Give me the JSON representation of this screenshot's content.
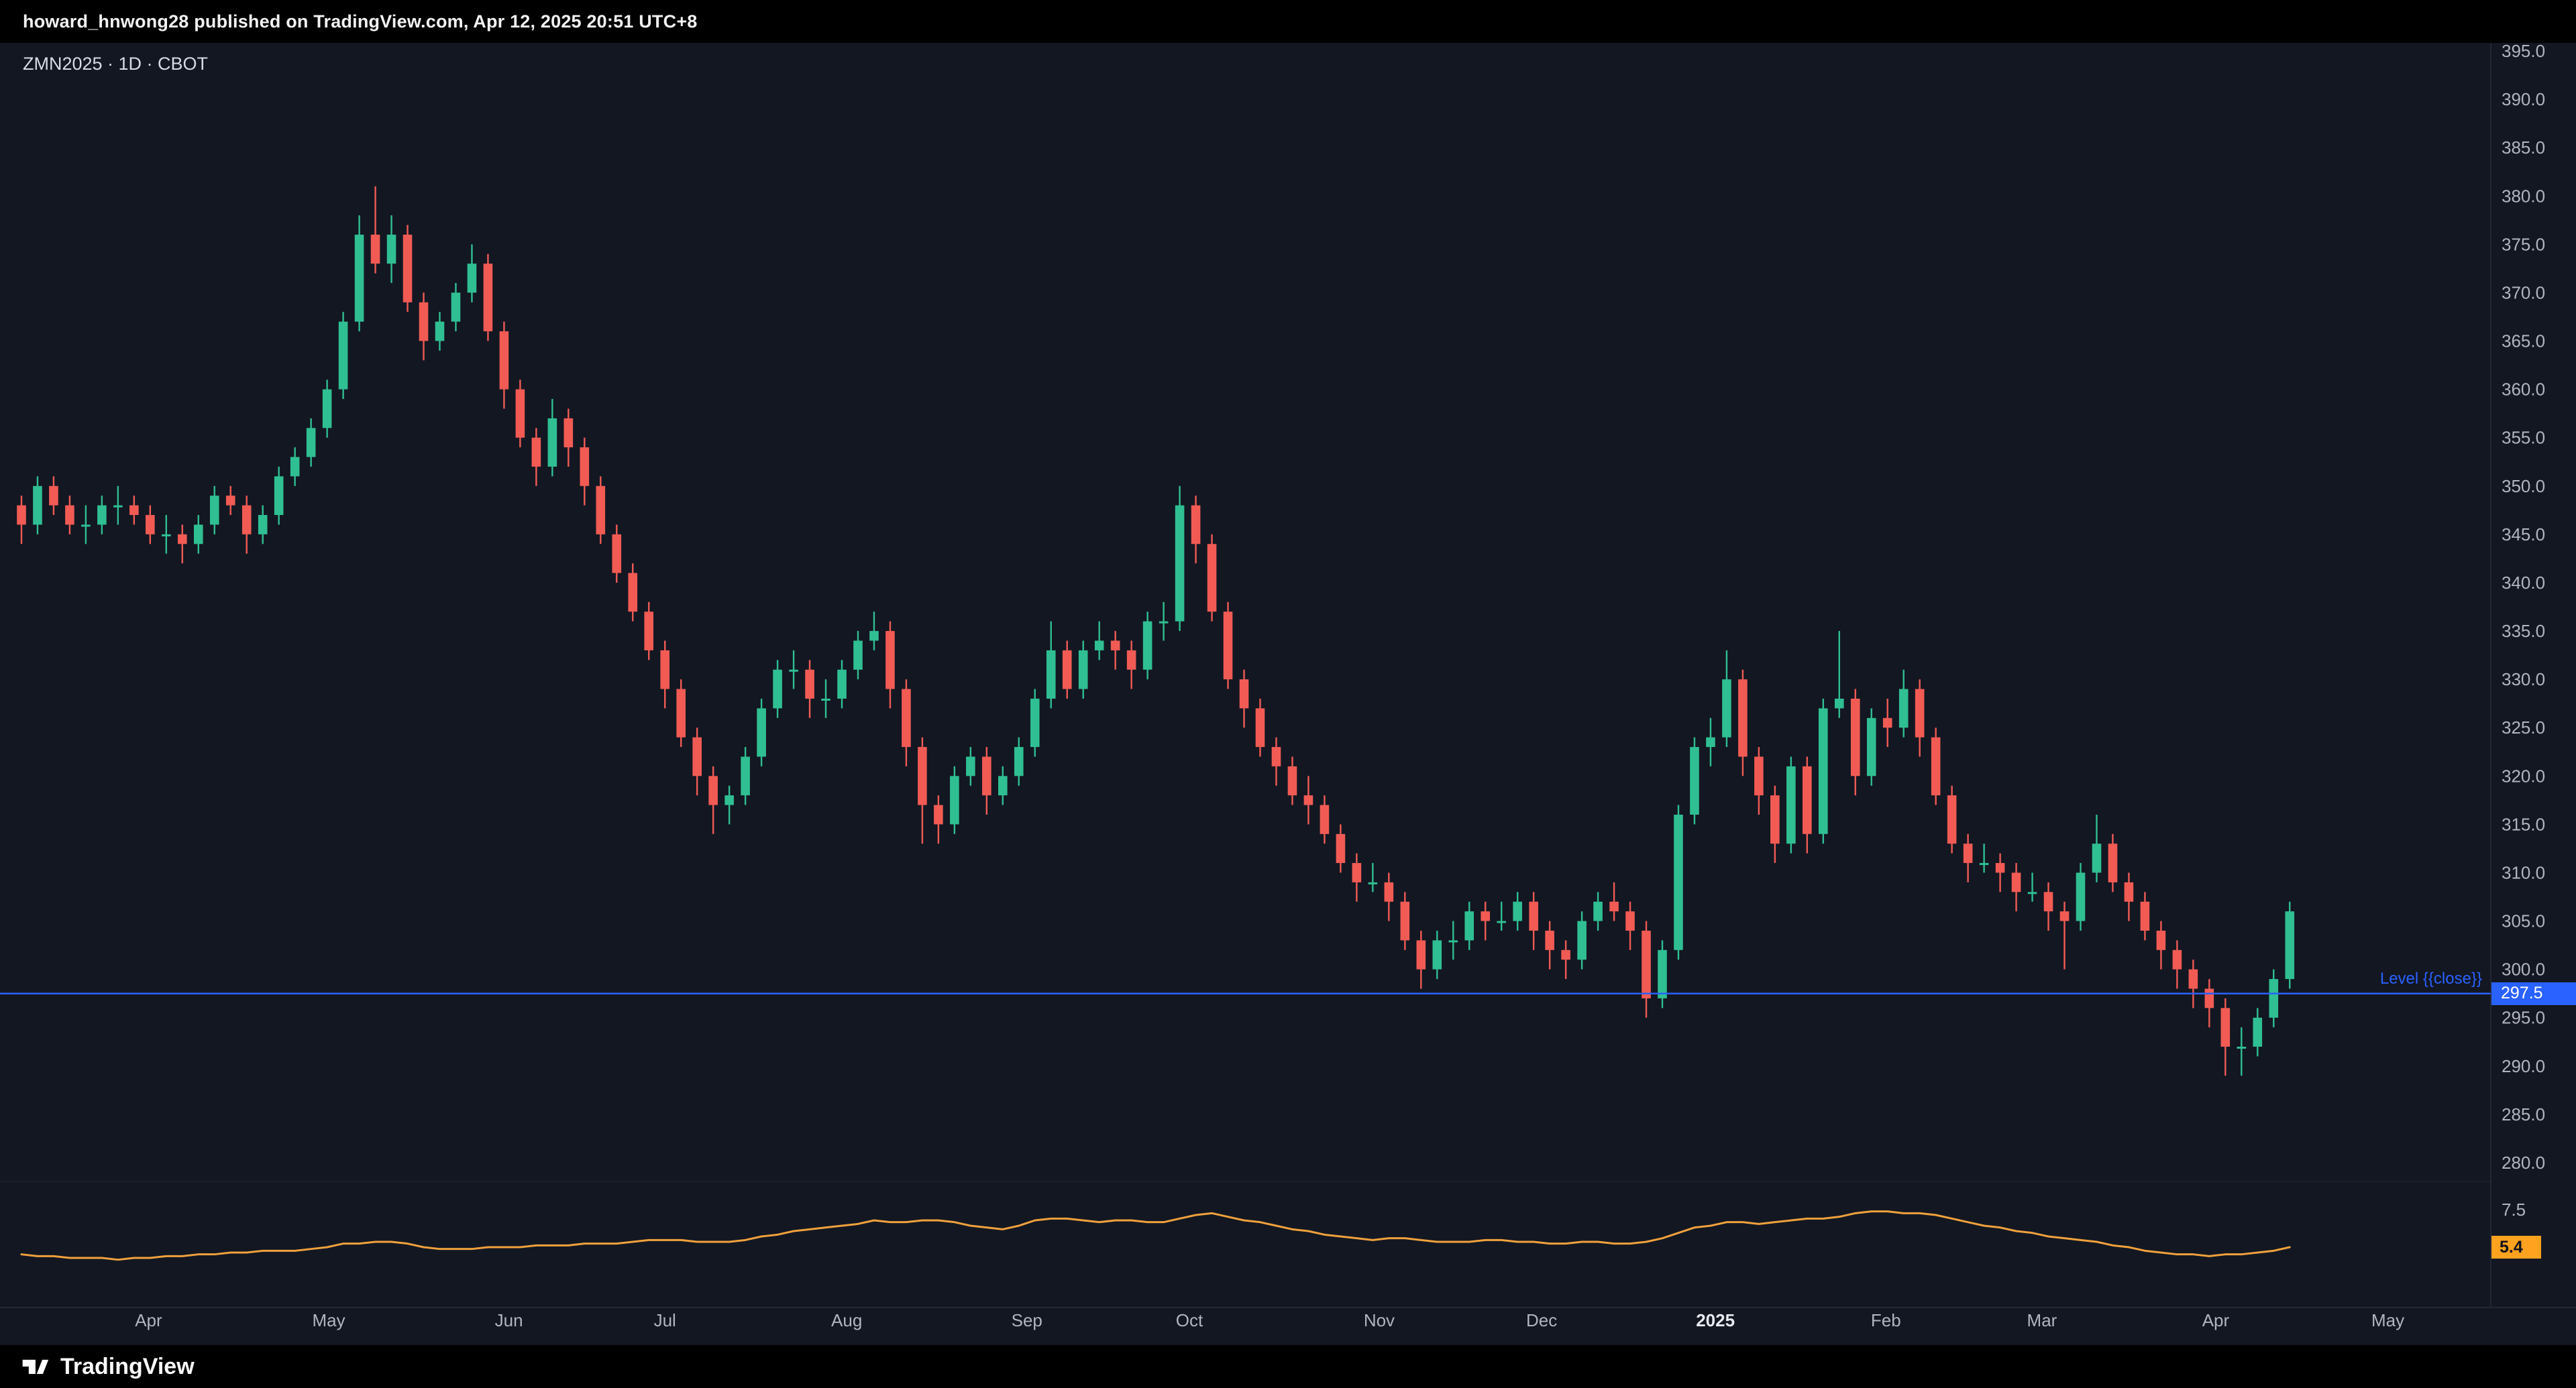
{
  "header": {
    "published_line": "howard_hnwong28 published on TradingView.com, Apr 12, 2025 20:51 UTC+8"
  },
  "symbol_bar": {
    "title": "ZMN2025 · 1D · CBOT"
  },
  "footer": {
    "brand_name": "TradingView"
  },
  "colors": {
    "chart_bg": "#131722",
    "accent_blue": "#2962ff",
    "up_green": "#2fbf92",
    "down_red": "#f15b54",
    "indicator_orange": "#f0a13c",
    "axis_text": "#b2b5be"
  },
  "chart_data": {
    "type": "candlestick",
    "title": "ZMN2025 · 1D · CBOT",
    "symbol": "ZMN2025",
    "interval": "1D",
    "exchange": "CBOT",
    "num_slots": 154,
    "up_color": "#2fbf92",
    "down_color": "#f15b54",
    "price_axis": {
      "max": 395.0,
      "min": 280.0,
      "step": 5.0,
      "tick_labels": [
        "395.0",
        "390.0",
        "385.0",
        "380.0",
        "375.0",
        "370.0",
        "365.0",
        "360.0",
        "355.0",
        "350.0",
        "345.0",
        "340.0",
        "335.0",
        "330.0",
        "325.0",
        "320.0",
        "315.0",
        "310.0",
        "305.0",
        "300.0",
        "295.0",
        "290.0",
        "285.0",
        "280.0"
      ]
    },
    "x_ticks": [
      {
        "label": "Apr",
        "slot": 8.4
      },
      {
        "label": "May",
        "slot": 19.6
      },
      {
        "label": "Jun",
        "slot": 30.8
      },
      {
        "label": "Jul",
        "slot": 40.5
      },
      {
        "label": "Aug",
        "slot": 51.8
      },
      {
        "label": "Sep",
        "slot": 63.0
      },
      {
        "label": "Oct",
        "slot": 73.1
      },
      {
        "label": "Nov",
        "slot": 84.9
      },
      {
        "label": "Dec",
        "slot": 95.0
      },
      {
        "label": "2025",
        "slot": 105.8,
        "bold": true
      },
      {
        "label": "Feb",
        "slot": 116.4
      },
      {
        "label": "Mar",
        "slot": 126.1
      },
      {
        "label": "Apr",
        "slot": 136.9
      },
      {
        "label": "May",
        "slot": 147.6
      }
    ],
    "level_line": {
      "price": 297.5,
      "label": "Level {{close}}",
      "badge": "297.5",
      "color": "#2962ff"
    },
    "candles": [
      [
        348,
        349,
        344,
        346
      ],
      [
        346,
        351,
        345,
        350
      ],
      [
        350,
        351,
        347,
        348
      ],
      [
        348,
        349,
        345,
        346
      ],
      [
        346,
        348,
        344,
        346
      ],
      [
        346,
        349,
        345,
        348
      ],
      [
        348,
        350,
        346,
        348
      ],
      [
        348,
        349,
        346,
        347
      ],
      [
        347,
        348,
        344,
        345
      ],
      [
        345,
        347,
        343,
        345
      ],
      [
        345,
        346,
        342,
        344
      ],
      [
        344,
        347,
        343,
        346
      ],
      [
        346,
        350,
        345,
        349
      ],
      [
        349,
        350,
        347,
        348
      ],
      [
        348,
        349,
        343,
        345
      ],
      [
        345,
        348,
        344,
        347
      ],
      [
        347,
        352,
        346,
        351
      ],
      [
        351,
        354,
        350,
        353
      ],
      [
        353,
        357,
        352,
        356
      ],
      [
        356,
        361,
        355,
        360
      ],
      [
        360,
        368,
        359,
        367
      ],
      [
        367,
        378,
        366,
        376
      ],
      [
        376,
        381,
        372,
        373
      ],
      [
        373,
        378,
        371,
        376
      ],
      [
        376,
        377,
        368,
        369
      ],
      [
        369,
        370,
        363,
        365
      ],
      [
        365,
        368,
        364,
        367
      ],
      [
        367,
        371,
        366,
        370
      ],
      [
        370,
        375,
        369,
        373
      ],
      [
        373,
        374,
        365,
        366
      ],
      [
        366,
        367,
        358,
        360
      ],
      [
        360,
        361,
        354,
        355
      ],
      [
        355,
        356,
        350,
        352
      ],
      [
        352,
        359,
        351,
        357
      ],
      [
        357,
        358,
        352,
        354
      ],
      [
        354,
        355,
        348,
        350
      ],
      [
        350,
        351,
        344,
        345
      ],
      [
        345,
        346,
        340,
        341
      ],
      [
        341,
        342,
        336,
        337
      ],
      [
        337,
        338,
        332,
        333
      ],
      [
        333,
        334,
        327,
        329
      ],
      [
        329,
        330,
        323,
        324
      ],
      [
        324,
        325,
        318,
        320
      ],
      [
        320,
        321,
        314,
        317
      ],
      [
        317,
        319,
        315,
        318
      ],
      [
        318,
        323,
        317,
        322
      ],
      [
        322,
        328,
        321,
        327
      ],
      [
        327,
        332,
        326,
        331
      ],
      [
        331,
        333,
        329,
        331
      ],
      [
        331,
        332,
        326,
        328
      ],
      [
        328,
        330,
        326,
        328
      ],
      [
        328,
        332,
        327,
        331
      ],
      [
        331,
        335,
        330,
        334
      ],
      [
        334,
        337,
        333,
        335
      ],
      [
        335,
        336,
        327,
        329
      ],
      [
        329,
        330,
        321,
        323
      ],
      [
        323,
        324,
        313,
        317
      ],
      [
        317,
        318,
        313,
        315
      ],
      [
        315,
        321,
        314,
        320
      ],
      [
        320,
        323,
        319,
        322
      ],
      [
        322,
        323,
        316,
        318
      ],
      [
        318,
        321,
        317,
        320
      ],
      [
        320,
        324,
        319,
        323
      ],
      [
        323,
        329,
        322,
        328
      ],
      [
        328,
        336,
        327,
        333
      ],
      [
        333,
        334,
        328,
        329
      ],
      [
        329,
        334,
        328,
        333
      ],
      [
        333,
        336,
        332,
        334
      ],
      [
        334,
        335,
        331,
        333
      ],
      [
        333,
        334,
        329,
        331
      ],
      [
        331,
        337,
        330,
        336
      ],
      [
        336,
        338,
        334,
        336
      ],
      [
        336,
        350,
        335,
        348
      ],
      [
        348,
        349,
        342,
        344
      ],
      [
        344,
        345,
        336,
        337
      ],
      [
        337,
        338,
        329,
        330
      ],
      [
        330,
        331,
        325,
        327
      ],
      [
        327,
        328,
        322,
        323
      ],
      [
        323,
        324,
        319,
        321
      ],
      [
        321,
        322,
        317,
        318
      ],
      [
        318,
        320,
        315,
        317
      ],
      [
        317,
        318,
        313,
        314
      ],
      [
        314,
        315,
        310,
        311
      ],
      [
        311,
        312,
        307,
        309
      ],
      [
        309,
        311,
        308,
        309
      ],
      [
        309,
        310,
        305,
        307
      ],
      [
        307,
        308,
        302,
        303
      ],
      [
        303,
        304,
        298,
        300
      ],
      [
        300,
        304,
        299,
        303
      ],
      [
        303,
        305,
        301,
        303
      ],
      [
        303,
        307,
        302,
        306
      ],
      [
        306,
        307,
        303,
        305
      ],
      [
        305,
        307,
        304,
        305
      ],
      [
        305,
        308,
        304,
        307
      ],
      [
        307,
        308,
        302,
        304
      ],
      [
        304,
        305,
        300,
        302
      ],
      [
        302,
        303,
        299,
        301
      ],
      [
        301,
        306,
        300,
        305
      ],
      [
        305,
        308,
        304,
        307
      ],
      [
        307,
        309,
        305,
        306
      ],
      [
        306,
        307,
        302,
        304
      ],
      [
        304,
        305,
        295,
        297
      ],
      [
        297,
        303,
        296,
        302
      ],
      [
        302,
        317,
        301,
        316
      ],
      [
        316,
        324,
        315,
        323
      ],
      [
        323,
        326,
        321,
        324
      ],
      [
        324,
        333,
        323,
        330
      ],
      [
        330,
        331,
        320,
        322
      ],
      [
        322,
        323,
        316,
        318
      ],
      [
        318,
        319,
        311,
        313
      ],
      [
        313,
        322,
        312,
        321
      ],
      [
        321,
        322,
        312,
        314
      ],
      [
        314,
        328,
        313,
        327
      ],
      [
        327,
        335,
        326,
        328
      ],
      [
        328,
        329,
        318,
        320
      ],
      [
        320,
        327,
        319,
        326
      ],
      [
        326,
        328,
        323,
        325
      ],
      [
        325,
        331,
        324,
        329
      ],
      [
        329,
        330,
        322,
        324
      ],
      [
        324,
        325,
        317,
        318
      ],
      [
        318,
        319,
        312,
        313
      ],
      [
        313,
        314,
        309,
        311
      ],
      [
        311,
        313,
        310,
        311
      ],
      [
        311,
        312,
        308,
        310
      ],
      [
        310,
        311,
        306,
        308
      ],
      [
        308,
        310,
        307,
        308
      ],
      [
        308,
        309,
        304,
        306
      ],
      [
        306,
        307,
        300,
        305
      ],
      [
        305,
        311,
        304,
        310
      ],
      [
        310,
        316,
        309,
        313
      ],
      [
        313,
        314,
        308,
        309
      ],
      [
        309,
        310,
        305,
        307
      ],
      [
        307,
        308,
        303,
        304
      ],
      [
        304,
        305,
        300,
        302
      ],
      [
        302,
        303,
        298,
        300
      ],
      [
        300,
        301,
        296,
        298
      ],
      [
        298,
        299,
        294,
        296
      ],
      [
        296,
        297,
        289,
        292
      ],
      [
        292,
        294,
        289,
        292
      ],
      [
        292,
        296,
        291,
        295
      ],
      [
        295,
        300,
        294,
        299
      ],
      [
        299,
        307,
        298,
        306
      ]
    ],
    "indicator": {
      "type": "line",
      "color": "#f0a13c",
      "axis_label": "7.5",
      "axis_label_value": 7.5,
      "last_value_badge": "5.4",
      "badge_color": "#ffa21f",
      "values": [
        5.0,
        4.9,
        4.9,
        4.8,
        4.8,
        4.8,
        4.7,
        4.8,
        4.8,
        4.9,
        4.9,
        5.0,
        5.0,
        5.1,
        5.1,
        5.2,
        5.2,
        5.2,
        5.3,
        5.4,
        5.6,
        5.6,
        5.7,
        5.7,
        5.6,
        5.4,
        5.3,
        5.3,
        5.3,
        5.4,
        5.4,
        5.4,
        5.5,
        5.5,
        5.5,
        5.6,
        5.6,
        5.6,
        5.7,
        5.8,
        5.8,
        5.8,
        5.7,
        5.7,
        5.7,
        5.8,
        6.0,
        6.1,
        6.3,
        6.4,
        6.5,
        6.6,
        6.7,
        6.9,
        6.8,
        6.8,
        6.9,
        6.9,
        6.8,
        6.6,
        6.5,
        6.4,
        6.6,
        6.9,
        7.0,
        7.0,
        6.9,
        6.8,
        6.9,
        6.9,
        6.8,
        6.8,
        7.0,
        7.2,
        7.3,
        7.1,
        6.9,
        6.8,
        6.6,
        6.4,
        6.3,
        6.1,
        6.0,
        5.9,
        5.8,
        5.9,
        5.9,
        5.8,
        5.7,
        5.7,
        5.7,
        5.8,
        5.8,
        5.7,
        5.7,
        5.6,
        5.6,
        5.7,
        5.7,
        5.6,
        5.6,
        5.7,
        5.9,
        6.2,
        6.5,
        6.6,
        6.8,
        6.8,
        6.7,
        6.8,
        6.9,
        7.0,
        7.0,
        7.1,
        7.3,
        7.4,
        7.4,
        7.3,
        7.3,
        7.2,
        7.0,
        6.8,
        6.6,
        6.5,
        6.3,
        6.2,
        6.0,
        5.9,
        5.8,
        5.7,
        5.5,
        5.4,
        5.2,
        5.1,
        5.0,
        5.0,
        4.9,
        5.0,
        5.0,
        5.1,
        5.2,
        5.4
      ]
    }
  }
}
